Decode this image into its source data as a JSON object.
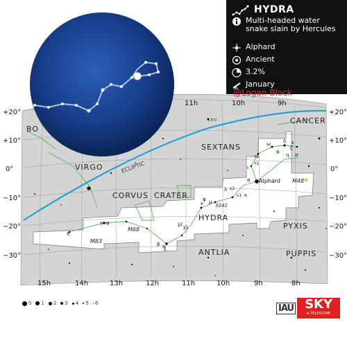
{
  "info": {
    "title": "HYDRA",
    "description": "Multi-headed water snake slain by Hercules",
    "brightest_star": "Alphard",
    "origin": "Ancient",
    "sky_area": "3.2%",
    "best_month": "January",
    "credit": "@Logan Block"
  },
  "ra_labels_top": [
    "11h",
    "10h",
    "9h"
  ],
  "ra_labels_bottom": [
    "15h",
    "14h",
    "13h",
    "12h",
    "11h",
    "10h",
    "9h",
    "8h"
  ],
  "dec_labels": [
    "+20°",
    "+10°",
    "0°",
    "−10°",
    "−20°",
    "−30°"
  ],
  "constellation_names": [
    "CANCER",
    "SEXTANS",
    "VIRGO",
    "CORVUS",
    "CRATER",
    "HYDRA",
    "PYXIS",
    "ANTLIA",
    "PUPPIS",
    "BO",
    "LEO"
  ],
  "ecliptic_label": "ECLIPTIC",
  "star_labels": [
    "Alphard",
    "α",
    "ι",
    "θ",
    "ζ",
    "ω",
    "ε",
    "δ",
    "σ",
    "η",
    "τ1",
    "τ2",
    "λ",
    "μ",
    "ν",
    "φ",
    "υ1",
    "υ2",
    "κ",
    "γ",
    "ψ",
    "π",
    "β",
    "ξ",
    "χ1",
    "χ2",
    "ο"
  ],
  "deep_sky_labels": [
    "M48",
    "M68",
    "M83",
    "3242"
  ],
  "legend": {
    "magnitudes": [
      "0",
      "1",
      "2",
      "3",
      "4",
      "5",
      "6"
    ]
  },
  "logos": {
    "iau": "IAU",
    "sky": "SKY",
    "sky_sub": "& TELESCOPE"
  },
  "colors": {
    "sky_highlight": "#ffffff",
    "sky_background": "#d4d4d4",
    "ecliptic": "#1ba3d6",
    "figure_lines": "#4db84d",
    "globe": "#15357a",
    "panel": "#111111",
    "credit": "#e0302a"
  }
}
